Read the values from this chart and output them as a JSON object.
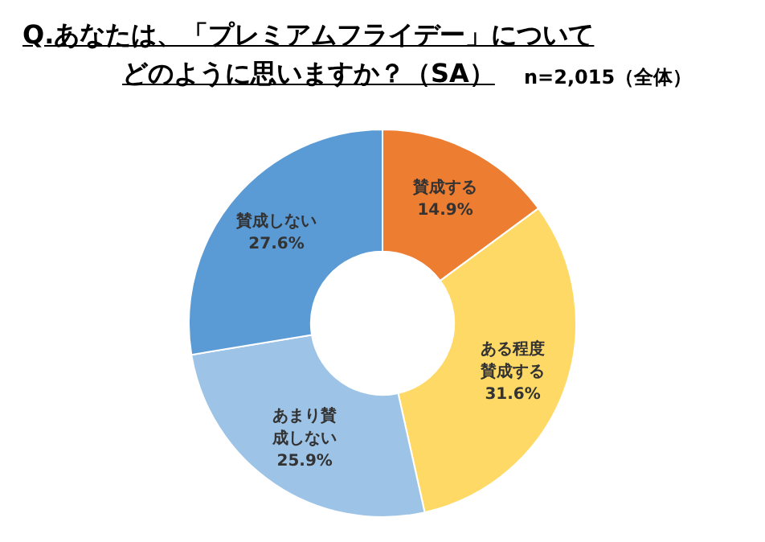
{
  "chart_data": {
    "type": "donut",
    "title": "Q.あなたは、「プレミアムフライデー」についてどのように思いますか？（SA）",
    "subtitle": "n=2,015（全体）",
    "categories": [
      "賛成する",
      "ある程度賛成する",
      "あまり賛成しない",
      "賛成しない"
    ],
    "values": [
      14.9,
      31.6,
      25.9,
      27.6
    ],
    "colors": [
      "#ed7d31",
      "#ffd966",
      "#9dc3e6",
      "#5b9bd5"
    ],
    "value_labels": [
      "14.9%",
      "31.6%",
      "25.9%",
      "27.6%"
    ],
    "legend": false
  }
}
